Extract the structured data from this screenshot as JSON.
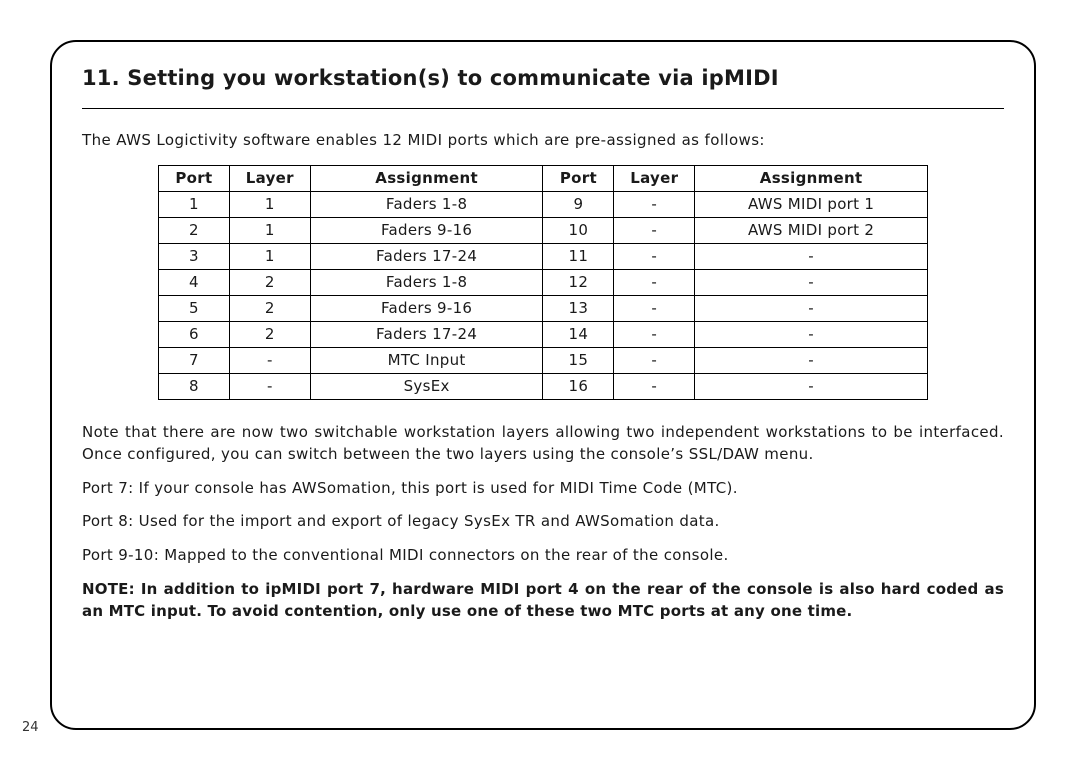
{
  "page_number": "24",
  "section_title": "11. Setting you workstation(s) to communicate via ipMIDI",
  "intro": "The AWS Logictivity software enables 12 MIDI ports which are pre-assigned as follows:",
  "table": {
    "headers_left": {
      "port": "Port",
      "layer": "Layer",
      "assignment": "Assignment"
    },
    "headers_right": {
      "port": "Port",
      "layer": "Layer",
      "assignment": "Assignment"
    },
    "rows": [
      {
        "l": {
          "port": "1",
          "layer": "1",
          "assignment": "Faders 1-8"
        },
        "r": {
          "port": "9",
          "layer": "-",
          "assignment": "AWS MIDI port 1"
        }
      },
      {
        "l": {
          "port": "2",
          "layer": "1",
          "assignment": "Faders 9-16"
        },
        "r": {
          "port": "10",
          "layer": "-",
          "assignment": "AWS MIDI port 2"
        }
      },
      {
        "l": {
          "port": "3",
          "layer": "1",
          "assignment": "Faders 17-24"
        },
        "r": {
          "port": "11",
          "layer": "-",
          "assignment": "-"
        }
      },
      {
        "l": {
          "port": "4",
          "layer": "2",
          "assignment": "Faders 1-8"
        },
        "r": {
          "port": "12",
          "layer": "-",
          "assignment": "-"
        }
      },
      {
        "l": {
          "port": "5",
          "layer": "2",
          "assignment": "Faders 9-16"
        },
        "r": {
          "port": "13",
          "layer": "-",
          "assignment": "-"
        }
      },
      {
        "l": {
          "port": "6",
          "layer": "2",
          "assignment": "Faders 17-24"
        },
        "r": {
          "port": "14",
          "layer": "-",
          "assignment": "-"
        }
      },
      {
        "l": {
          "port": "7",
          "layer": "-",
          "assignment": "MTC Input"
        },
        "r": {
          "port": "15",
          "layer": "-",
          "assignment": "-"
        }
      },
      {
        "l": {
          "port": "8",
          "layer": "-",
          "assignment": "SysEx"
        },
        "r": {
          "port": "16",
          "layer": "-",
          "assignment": "-"
        }
      }
    ]
  },
  "paragraphs": {
    "p1": "Note that there are now two switchable workstation layers allowing two independent workstations to be interfaced. Once configured, you can switch between the two layers using the console’s SSL/DAW menu.",
    "p2": "Port 7: If your console has AWSomation, this port is used for MIDI Time Code (MTC).",
    "p3": "Port 8: Used for the import and export of legacy SysEx TR and AWSomation data.",
    "p4": "Port 9-10: Mapped to the conventional MIDI connectors on the rear of the console."
  },
  "note": "NOTE: In addition to ipMIDI port 7, hardware MIDI port 4 on the rear of the console is also hard coded as an MTC input. To avoid contention, only use one of these two MTC ports at any one time."
}
